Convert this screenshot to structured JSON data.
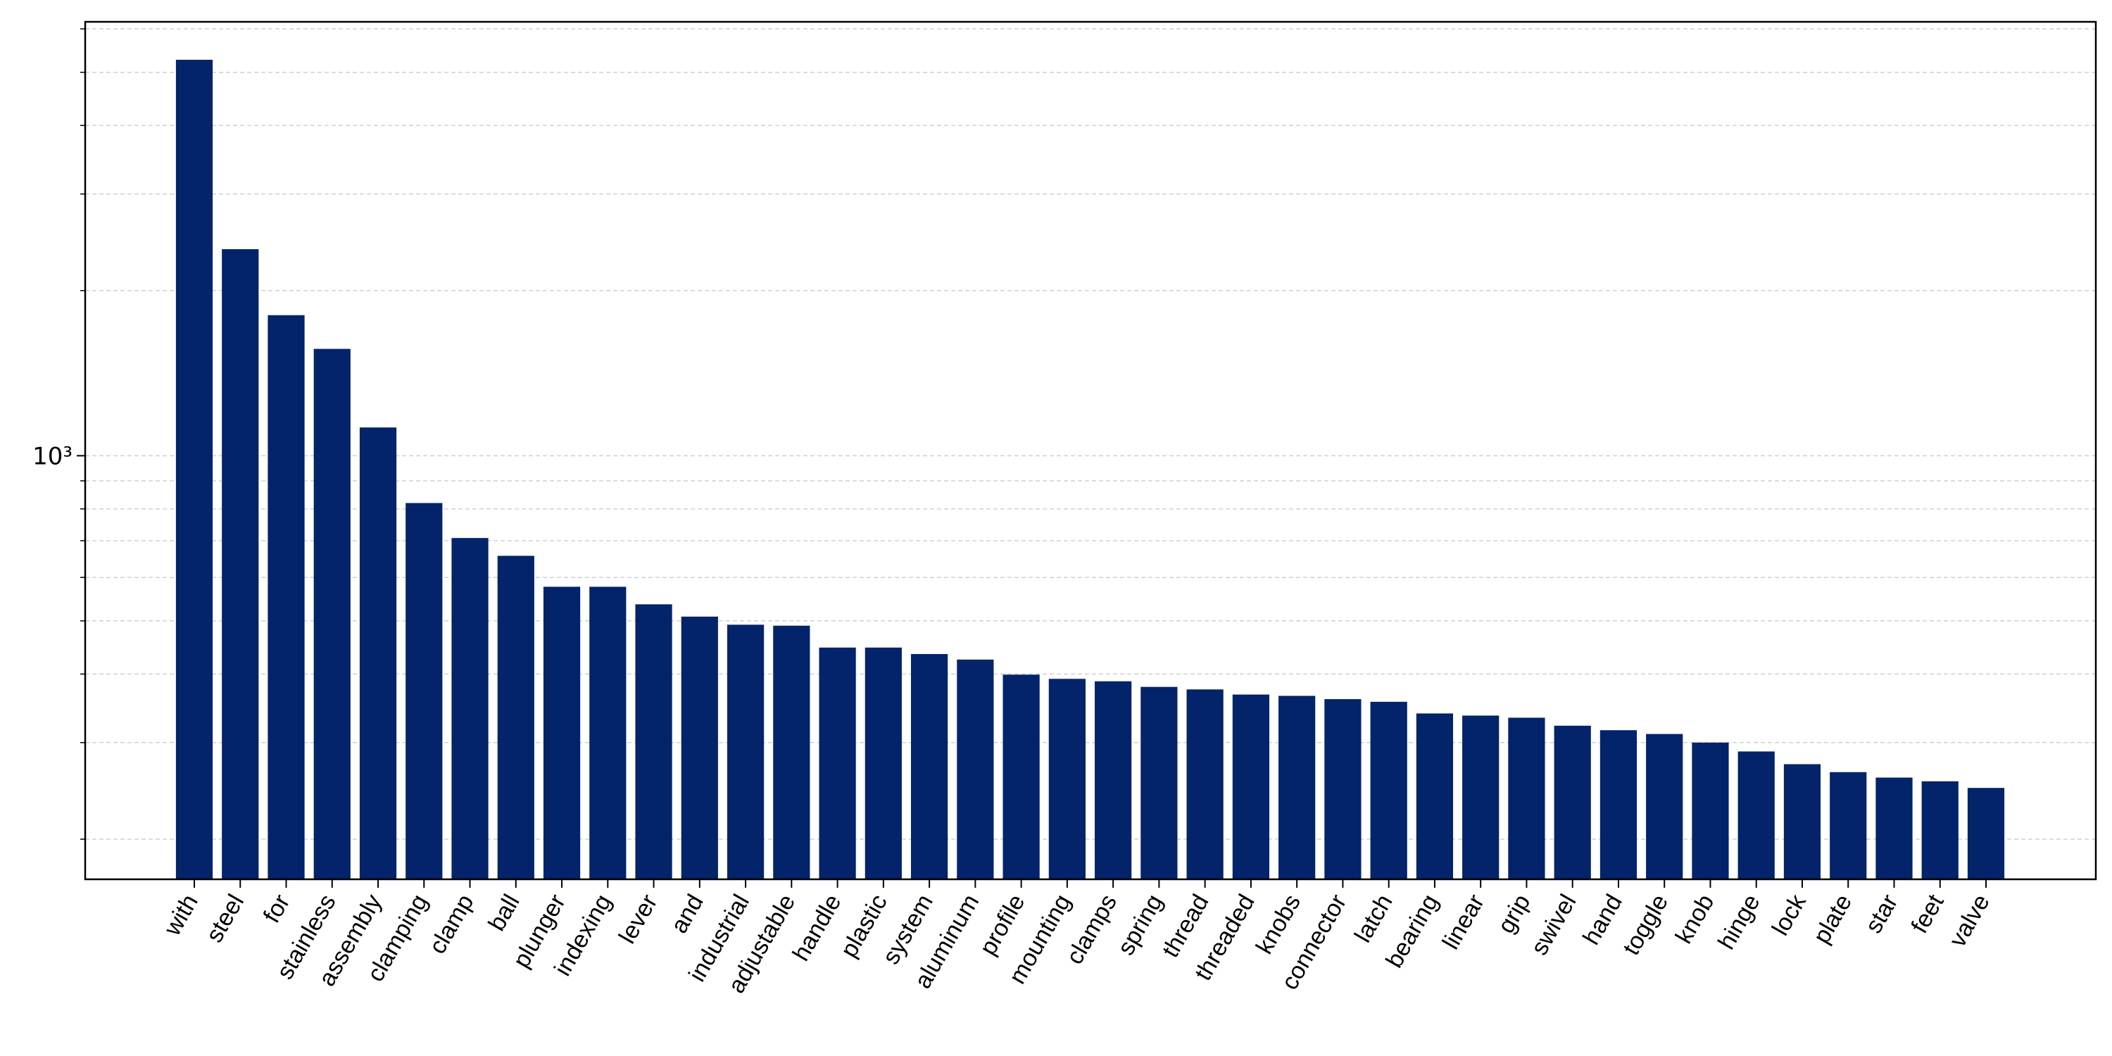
{
  "chart_data": {
    "type": "bar",
    "categories": [
      "with",
      "steel",
      "for",
      "stainless",
      "assembly",
      "clamping",
      "clamp",
      "ball",
      "plunger",
      "indexing",
      "lever",
      "and",
      "industrial",
      "adjustable",
      "handle",
      "plastic",
      "system",
      "aluminum",
      "profile",
      "mounting",
      "clamps",
      "spring",
      "thread",
      "threaded",
      "knobs",
      "connector",
      "latch",
      "bearing",
      "linear",
      "grip",
      "swivel",
      "hand",
      "toggle",
      "knob",
      "hinge",
      "lock",
      "plate",
      "star",
      "feet",
      "valve"
    ],
    "values": [
      5270,
      2380,
      1804,
      1566,
      1126,
      820,
      708,
      657,
      577,
      577,
      536,
      509,
      492,
      490,
      447,
      447,
      435,
      425,
      399,
      392,
      388,
      379,
      375,
      367,
      365,
      360,
      356,
      339,
      336,
      333,
      322,
      316,
      311,
      300,
      289,
      274,
      265,
      259,
      255,
      248
    ],
    "color": "#03236b",
    "log_y": true,
    "ylim": [
      169,
      6180
    ],
    "yticks": [
      {
        "value": 1000,
        "label": "10³"
      }
    ],
    "minor_yticks": [
      200,
      300,
      400,
      500,
      600,
      700,
      800,
      900,
      2000,
      3000,
      4000,
      5000,
      6000
    ],
    "grid": true
  }
}
